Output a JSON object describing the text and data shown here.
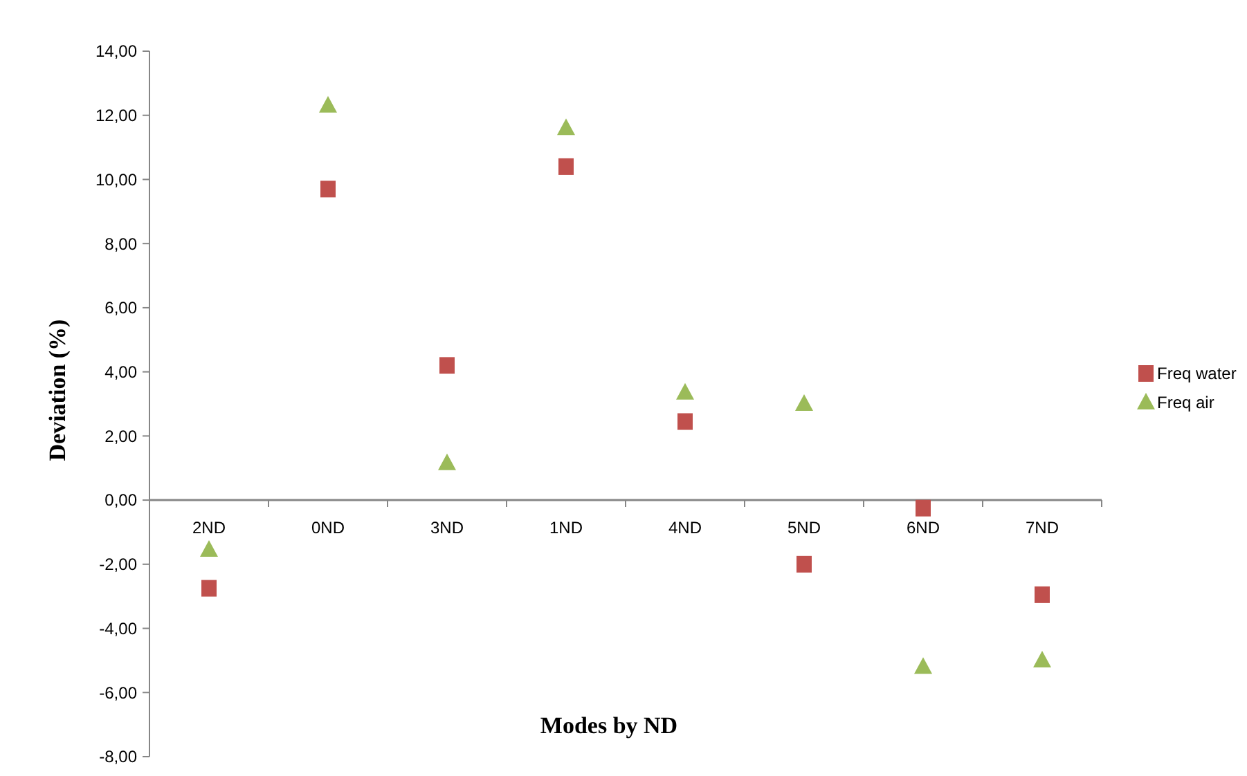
{
  "chart_data": {
    "type": "scatter",
    "xlabel": "Modes by ND",
    "ylabel": "Deviation (%)",
    "categories": [
      "2ND",
      "0ND",
      "3ND",
      "1ND",
      "4ND",
      "5ND",
      "6ND",
      "7ND"
    ],
    "series": [
      {
        "name": "Freq water",
        "color": "#c0504d",
        "marker": "square",
        "values": [
          -2.75,
          9.7,
          4.2,
          10.4,
          2.45,
          -2.0,
          -0.25,
          -2.95
        ]
      },
      {
        "name": "Freq air",
        "color": "#9bbb59",
        "marker": "triangle",
        "values": [
          -1.55,
          12.3,
          1.15,
          11.6,
          3.35,
          3.0,
          -5.2,
          -5.0
        ]
      }
    ],
    "ylim": [
      -8,
      14
    ],
    "yticks": [
      {
        "value": -8,
        "label": "-8,00"
      },
      {
        "value": -6,
        "label": "-6,00"
      },
      {
        "value": -4,
        "label": "-4,00"
      },
      {
        "value": -2,
        "label": "-2,00"
      },
      {
        "value": 0,
        "label": "0,00"
      },
      {
        "value": 2,
        "label": "2,00"
      },
      {
        "value": 4,
        "label": "4,00"
      },
      {
        "value": 6,
        "label": "6,00"
      },
      {
        "value": 8,
        "label": "8,00"
      },
      {
        "value": 10,
        "label": "10,00"
      },
      {
        "value": 12,
        "label": "12,00"
      },
      {
        "value": 14,
        "label": "14,00"
      }
    ],
    "grid": false,
    "legend": "right"
  }
}
